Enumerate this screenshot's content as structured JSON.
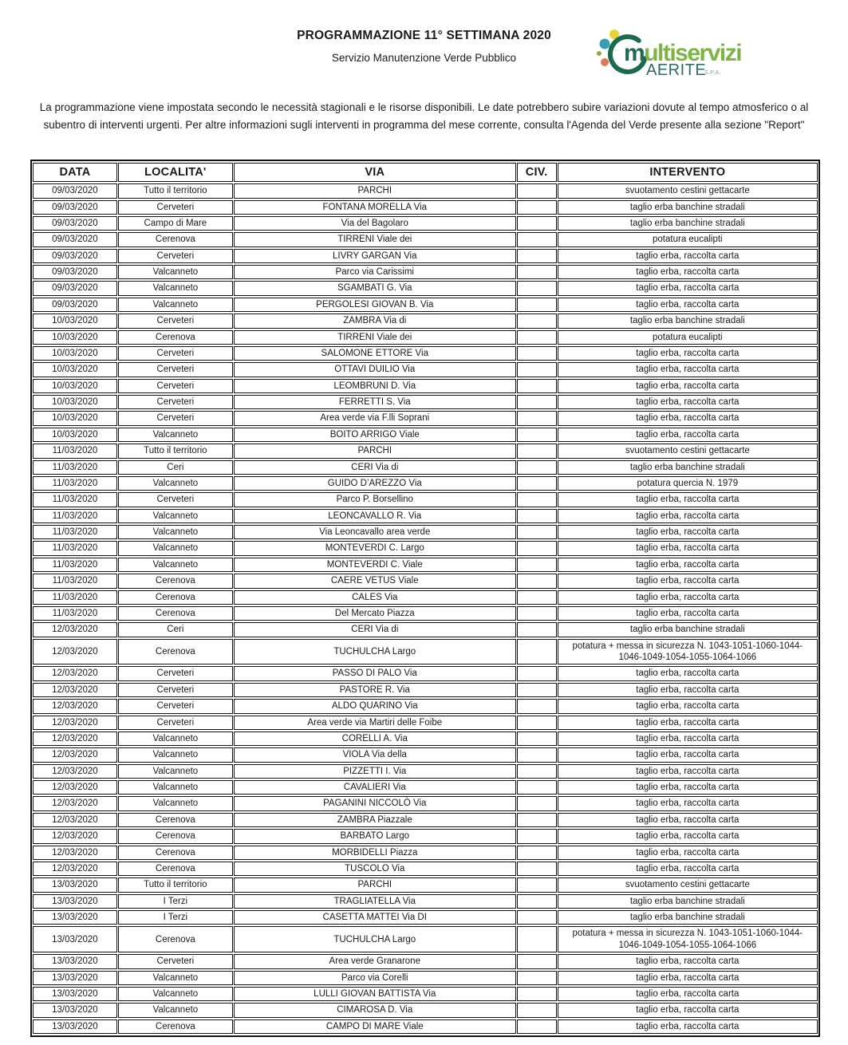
{
  "header": {
    "title": "PROGRAMMAZIONE 11° SETTIMANA 2020",
    "subtitle": "Servizio Manutenzione Verde Pubblico"
  },
  "logo": {
    "brand_first_letter": "m",
    "brand_rest": "ultiservizi",
    "company": "AERITE",
    "suffix": "S.P.A.",
    "colors": {
      "dark_green": "#1d6a52",
      "light_green": "#7cb544",
      "teal_dot": "#35a0ae",
      "yellow_dot": "#e8d23a",
      "orange_dot": "#dd7a55",
      "olive_dot": "#8fae3e",
      "company_text": "#2b6e60",
      "suffix_text": "#8aa39b"
    }
  },
  "intro": {
    "text": "La programmazione viene impostata secondo le necessità stagionali e le risorse disponibili. Le date potrebbero subire variazioni dovute al tempo atmosferico o al subentro di interventi urgenti. Per altre informazioni sugli interventi in programma del mese corrente, consulta l'Agenda del Verde presente alla sezione \"Report\""
  },
  "table": {
    "columns": [
      "DATA",
      "LOCALITA'",
      "VIA",
      "CIV.",
      "INTERVENTO"
    ],
    "rows": [
      [
        "09/03/2020",
        "Tutto il territorio",
        "PARCHI",
        "",
        "svuotamento cestini gettacarte"
      ],
      [
        "09/03/2020",
        "Cerveteri",
        "FONTANA MORELLA Via",
        "",
        "taglio erba banchine stradali"
      ],
      [
        "09/03/2020",
        "Campo di Mare",
        "Via del Bagolaro",
        "",
        "taglio erba banchine stradali"
      ],
      [
        "09/03/2020",
        "Cerenova",
        "TIRRENI Viale dei",
        "",
        "potatura eucalipti"
      ],
      [
        "09/03/2020",
        "Cerveteri",
        "LIVRY GARGAN Via",
        "",
        "taglio erba, raccolta carta"
      ],
      [
        "09/03/2020",
        "Valcanneto",
        "Parco via Carissimi",
        "",
        "taglio erba, raccolta carta"
      ],
      [
        "09/03/2020",
        "Valcanneto",
        "SGAMBATI G. Via",
        "",
        "taglio erba, raccolta carta"
      ],
      [
        "09/03/2020",
        "Valcanneto",
        "PERGOLESI GIOVAN B. Via",
        "",
        "taglio erba, raccolta carta"
      ],
      [
        "10/03/2020",
        "Cerveteri",
        "ZAMBRA Via di",
        "",
        "taglio erba banchine stradali"
      ],
      [
        "10/03/2020",
        "Cerenova",
        "TIRRENI Viale dei",
        "",
        "potatura eucalipti"
      ],
      [
        "10/03/2020",
        "Cerveteri",
        "SALOMONE ETTORE Via",
        "",
        "taglio erba, raccolta carta"
      ],
      [
        "10/03/2020",
        "Cerveteri",
        "OTTAVI DUILIO Via",
        "",
        "taglio erba, raccolta carta"
      ],
      [
        "10/03/2020",
        "Cerveteri",
        "LEOMBRUNI D. Via",
        "",
        "taglio erba, raccolta carta"
      ],
      [
        "10/03/2020",
        "Cerveteri",
        "FERRETTI S. Via",
        "",
        "taglio erba, raccolta carta"
      ],
      [
        "10/03/2020",
        "Cerveteri",
        "Area verde via F.lli Soprani",
        "",
        "taglio erba, raccolta carta"
      ],
      [
        "10/03/2020",
        "Valcanneto",
        "BOITO ARRIGO Viale",
        "",
        "taglio erba, raccolta carta"
      ],
      [
        "11/03/2020",
        "Tutto il territorio",
        "PARCHI",
        "",
        "svuotamento cestini gettacarte"
      ],
      [
        "11/03/2020",
        "Ceri",
        "CERI Via di",
        "",
        "taglio erba banchine stradali"
      ],
      [
        "11/03/2020",
        "Valcanneto",
        "GUIDO D’AREZZO Via",
        "",
        "potatura quercia N. 1979"
      ],
      [
        "11/03/2020",
        "Cerveteri",
        "Parco P. Borsellino",
        "",
        "taglio erba, raccolta carta"
      ],
      [
        "11/03/2020",
        "Valcanneto",
        "LEONCAVALLO R. Via",
        "",
        "taglio erba, raccolta carta"
      ],
      [
        "11/03/2020",
        "Valcanneto",
        "Via Leoncavallo area verde",
        "",
        "taglio erba, raccolta carta"
      ],
      [
        "11/03/2020",
        "Valcanneto",
        "MONTEVERDI C. Largo",
        "",
        "taglio erba, raccolta carta"
      ],
      [
        "11/03/2020",
        "Valcanneto",
        "MONTEVERDI C. Viale",
        "",
        "taglio erba, raccolta carta"
      ],
      [
        "11/03/2020",
        "Cerenova",
        "CAERE VETUS Viale",
        "",
        "taglio erba, raccolta carta"
      ],
      [
        "11/03/2020",
        "Cerenova",
        "CALES Via",
        "",
        "taglio erba, raccolta carta"
      ],
      [
        "11/03/2020",
        "Cerenova",
        "Del Mercato Piazza",
        "",
        "taglio erba, raccolta carta"
      ],
      [
        "12/03/2020",
        "Ceri",
        "CERI Via di",
        "",
        "taglio erba banchine stradali"
      ],
      [
        "12/03/2020",
        "Cerenova",
        "TUCHULCHA Largo",
        "",
        "potatura + messa in sicurezza N. 1043-1051-1060-1044-1046-1049-1054-1055-1064-1066"
      ],
      [
        "12/03/2020",
        "Cerveteri",
        "PASSO DI PALO Via",
        "",
        "taglio erba, raccolta carta"
      ],
      [
        "12/03/2020",
        "Cerveteri",
        "PASTORE R. Via",
        "",
        "taglio erba, raccolta carta"
      ],
      [
        "12/03/2020",
        "Cerveteri",
        "ALDO QUARINO Via",
        "",
        "taglio erba, raccolta carta"
      ],
      [
        "12/03/2020",
        "Cerveteri",
        "Area verde via Martiri delle Foibe",
        "",
        "taglio erba, raccolta carta"
      ],
      [
        "12/03/2020",
        "Valcanneto",
        "CORELLI A. Via",
        "",
        "taglio erba, raccolta carta"
      ],
      [
        "12/03/2020",
        "Valcanneto",
        "VIOLA Via della",
        "",
        "taglio erba, raccolta carta"
      ],
      [
        "12/03/2020",
        "Valcanneto",
        "PIZZETTI I. Via",
        "",
        "taglio erba, raccolta carta"
      ],
      [
        "12/03/2020",
        "Valcanneto",
        "CAVALIERI Via",
        "",
        "taglio erba, raccolta carta"
      ],
      [
        "12/03/2020",
        "Valcanneto",
        "PAGANINI NICCOLÒ Via",
        "",
        "taglio erba, raccolta carta"
      ],
      [
        "12/03/2020",
        "Cerenova",
        "ZAMBRA Piazzale",
        "",
        "taglio erba, raccolta carta"
      ],
      [
        "12/03/2020",
        "Cerenova",
        "BARBATO Largo",
        "",
        "taglio erba, raccolta carta"
      ],
      [
        "12/03/2020",
        "Cerenova",
        "MORBIDELLI Piazza",
        "",
        "taglio erba, raccolta carta"
      ],
      [
        "12/03/2020",
        "Cerenova",
        "TUSCOLO Via",
        "",
        "taglio erba, raccolta carta"
      ],
      [
        "13/03/2020",
        "Tutto il territorio",
        "PARCHI",
        "",
        "svuotamento cestini gettacarte"
      ],
      [
        "13/03/2020",
        "I Terzi",
        "TRAGLIATELLA Via",
        "",
        "taglio erba banchine stradali"
      ],
      [
        "13/03/2020",
        "I Terzi",
        "CASETTA MATTEI Via DI",
        "",
        "taglio erba banchine stradali"
      ],
      [
        "13/03/2020",
        "Cerenova",
        "TUCHULCHA Largo",
        "",
        "potatura + messa in sicurezza N. 1043-1051-1060-1044-1046-1049-1054-1055-1064-1066"
      ],
      [
        "13/03/2020",
        "Cerveteri",
        "Area verde Granarone",
        "",
        "taglio erba, raccolta carta"
      ],
      [
        "13/03/2020",
        "Valcanneto",
        "Parco via Corelli",
        "",
        "taglio erba, raccolta carta"
      ],
      [
        "13/03/2020",
        "Valcanneto",
        "LULLI GIOVAN BATTISTA Via",
        "",
        "taglio erba, raccolta carta"
      ],
      [
        "13/03/2020",
        "Valcanneto",
        "CIMAROSA D. Via",
        "",
        "taglio erba, raccolta carta"
      ],
      [
        "13/03/2020",
        "Cerenova",
        "CAMPO DI MARE Viale",
        "",
        "taglio erba, raccolta carta"
      ]
    ]
  }
}
